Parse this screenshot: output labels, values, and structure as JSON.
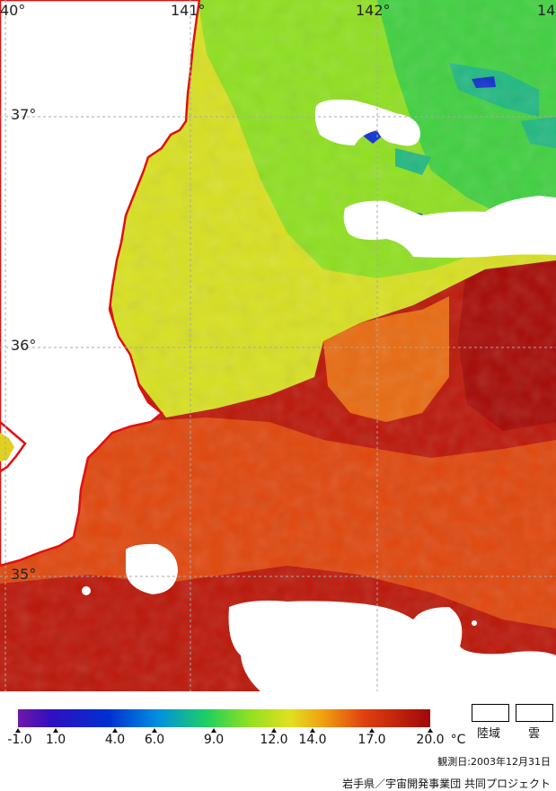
{
  "map": {
    "lon_labels": [
      "40°",
      "141°",
      "142°",
      "14"
    ],
    "lat_labels": [
      "37°",
      "36°",
      "35°"
    ]
  },
  "legend": {
    "ticks": [
      "-1.0",
      "1.0",
      "4.0",
      "6.0",
      "9.0",
      "12.0",
      "14.0",
      "17.0",
      "20.0"
    ],
    "unit": "°C",
    "land_label": "陸域",
    "cloud_label": "雲"
  },
  "footer": {
    "observation_date": "観測日:2003年12月31日",
    "credit": "岩手県／宇宙開発事業団 共同プロジェクト"
  },
  "colors": {
    "coast": "#e01010",
    "grid": "#a0a0a0",
    "cold": "#7020a0",
    "warm": "#a00808"
  }
}
